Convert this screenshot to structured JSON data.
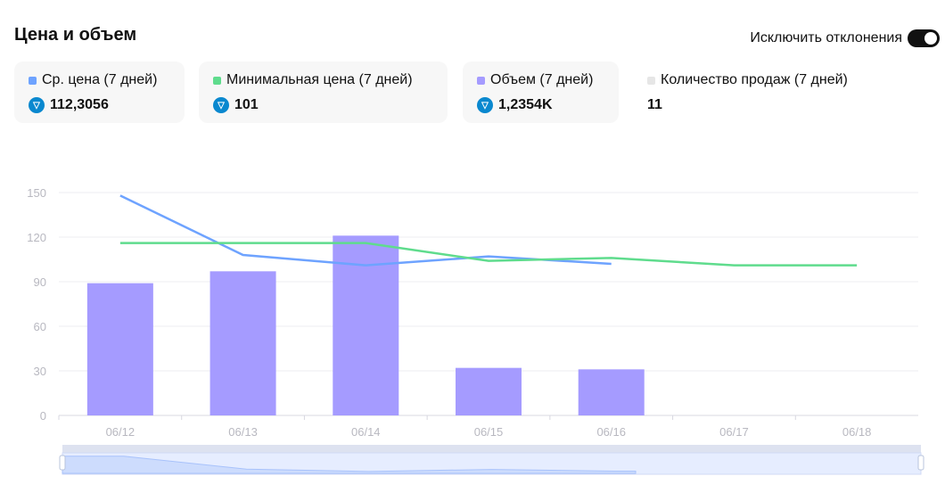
{
  "header": {
    "title": "Цена и объем",
    "toggle_label": "Исключить отклонения",
    "toggle_on": true
  },
  "cards": [
    {
      "label": "Ср. цена (7 дней)",
      "value": "112,3056",
      "color": "#6ea3ff",
      "ton": true
    },
    {
      "label": "Минимальная цена (7 дней)",
      "value": "101",
      "color": "#5fdc8d",
      "ton": true
    },
    {
      "label": "Объем (7 дней)",
      "value": "1,2354K",
      "color": "#a59bff",
      "ton": true
    },
    {
      "label": "Количество продаж (7 дней)",
      "value": "11",
      "color": "#e6e6e6",
      "ton": false
    }
  ],
  "chart_data": {
    "type": "bar+line",
    "categories": [
      "06/12",
      "06/13",
      "06/14",
      "06/15",
      "06/16",
      "06/17",
      "06/18"
    ],
    "yticks": [
      "0",
      "30",
      "60",
      "90",
      "120",
      "150"
    ],
    "ylim": [
      0,
      150
    ],
    "series": [
      {
        "name": "Объем",
        "type": "bar",
        "color": "#a59bff",
        "values": [
          89,
          97,
          121,
          32,
          31,
          null,
          null
        ]
      },
      {
        "name": "Ср. цена",
        "type": "line",
        "color": "#6ea3ff",
        "values": [
          148,
          108,
          101,
          107,
          102,
          null,
          null
        ]
      },
      {
        "name": "Минимальная цена",
        "type": "line",
        "color": "#5fdc8d",
        "values": [
          116,
          116,
          116,
          104,
          106,
          101,
          101
        ]
      }
    ],
    "grid": true
  }
}
